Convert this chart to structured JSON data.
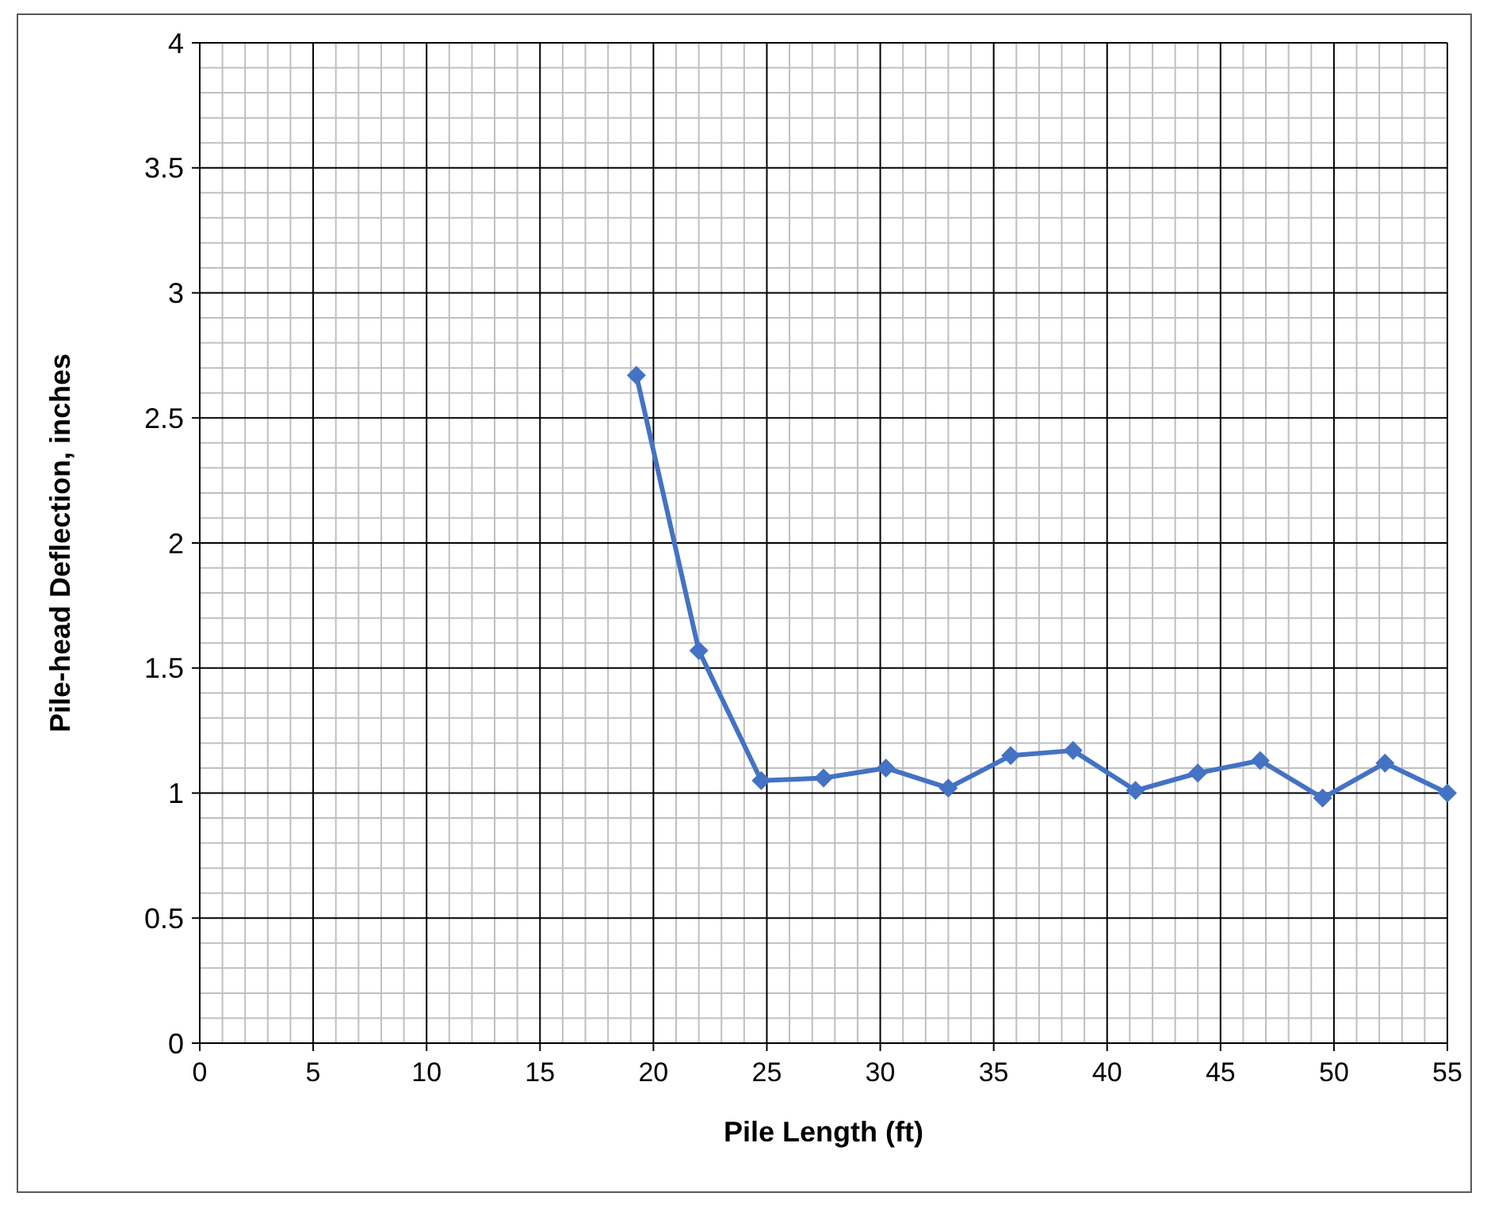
{
  "chart_data": {
    "type": "line",
    "xlabel": "Pile Length (ft)",
    "ylabel": "Pile-head Deflection, inches",
    "x": [
      19.25,
      22,
      24.75,
      27.5,
      30.25,
      33,
      35.75,
      38.5,
      41.25,
      44,
      46.75,
      49.5,
      52.25,
      55
    ],
    "series": [
      {
        "color": "#4472c4",
        "values": [
          2.67,
          1.57,
          1.05,
          1.06,
          1.1,
          1.02,
          1.15,
          1.17,
          1.01,
          1.08,
          1.13,
          0.98,
          1.12,
          1.0
        ]
      }
    ],
    "xlim": [
      0,
      55
    ],
    "xticks": [
      0,
      5,
      10,
      15,
      20,
      25,
      30,
      35,
      40,
      45,
      50,
      55
    ],
    "ylim": [
      0,
      4
    ],
    "yticks": [
      0,
      0.5,
      1,
      1.5,
      2,
      2.5,
      3,
      3.5,
      4
    ],
    "grid": true,
    "marker": "diamond",
    "line_style": "solid"
  }
}
